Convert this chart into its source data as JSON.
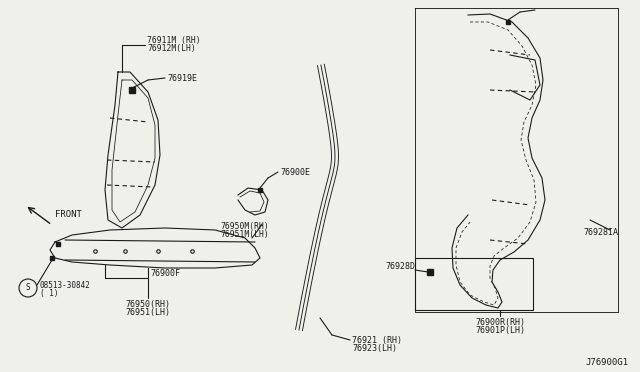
{
  "bg_color": "#f0f0eb",
  "line_color": "#1a1a1a",
  "diagram_id": "J76900G1",
  "labels": {
    "76911M_RH": "76911M (RH)",
    "76912M_LH": "76912M(LH)",
    "76919E": "76919E",
    "76900E": "76900E",
    "76950M_RH": "76950M(RH)",
    "76951M_LH": "76951M(LH)",
    "76900F": "76900F",
    "bolt1": "08513-30842",
    "bolt2": "( 1)",
    "76950_RH": "76950(RH)",
    "76951_LH": "76951(LH)",
    "76921_RH": "76921 (RH)",
    "76923_LH": "76923(LH)",
    "76928D": "76928D",
    "76928IA": "76928IA",
    "76900R_RH": "76900R(RH)",
    "76901P_LH": "76901P(LH)",
    "front": "FRONT"
  },
  "font_size": 6.0,
  "lw": 0.8
}
